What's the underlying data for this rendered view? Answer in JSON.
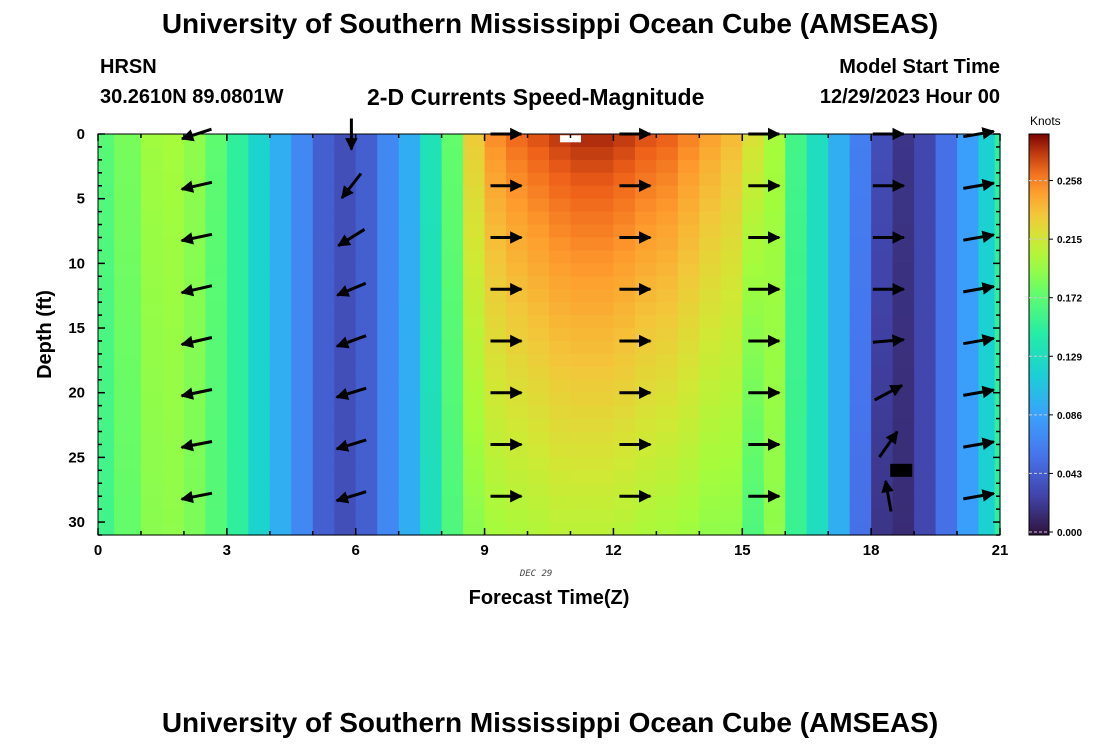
{
  "header": {
    "title": "University of Southern Mississippi Ocean Cube (AMSEAS)",
    "station": "HRSN",
    "coords": "30.2610N  89.0801W",
    "plot_title": "2-D Currents Speed-Magnitude",
    "start_label": "Model Start Time",
    "start_value": "12/29/2023 Hour 00"
  },
  "footer": {
    "title": "University of Southern Mississippi Ocean Cube (AMSEAS)"
  },
  "chart_data": {
    "type": "heatmap",
    "xlabel": "Forecast Time(Z)",
    "ylabel": "Depth (ft)",
    "date_label": "DEC 29",
    "xlim": [
      0,
      21
    ],
    "ylim": [
      31,
      0
    ],
    "xticks": [
      0,
      3,
      6,
      9,
      12,
      15,
      18,
      21
    ],
    "yticks": [
      0,
      5,
      10,
      15,
      20,
      25,
      30
    ],
    "colorbar": {
      "label": "Knots",
      "range": [
        0,
        0.29
      ],
      "ticks": [
        "0.000",
        "0.043",
        "0.086",
        "0.129",
        "0.172",
        "0.215",
        "0.258"
      ]
    },
    "columns": {
      "x": [
        0,
        0.75,
        1.25,
        1.75,
        2.25,
        2.75,
        3.25,
        3.75,
        4.25,
        4.75,
        5.25,
        5.75,
        6.25,
        6.75,
        7.25,
        7.75,
        8.25,
        8.75,
        9.25,
        9.75,
        10.25,
        10.75,
        11.25,
        11.75,
        12.25,
        12.75,
        13.25,
        13.75,
        14.25,
        14.75,
        15.25,
        15.75,
        16.25,
        16.75,
        17.25,
        17.75,
        18.25,
        18.75,
        19.25,
        19.75,
        20.25,
        20.75,
        21
      ],
      "speed_surface": [
        0.17,
        0.182,
        0.196,
        0.198,
        0.19,
        0.172,
        0.15,
        0.12,
        0.095,
        0.07,
        0.045,
        0.035,
        0.045,
        0.07,
        0.095,
        0.135,
        0.175,
        0.23,
        0.255,
        0.265,
        0.272,
        0.278,
        0.282,
        0.282,
        0.278,
        0.272,
        0.268,
        0.258,
        0.248,
        0.238,
        0.22,
        0.198,
        0.16,
        0.13,
        0.095,
        0.065,
        0.035,
        0.02,
        0.03,
        0.055,
        0.085,
        0.118,
        0.15
      ],
      "speed_bottom": [
        0.158,
        0.175,
        0.188,
        0.19,
        0.183,
        0.168,
        0.15,
        0.12,
        0.095,
        0.07,
        0.045,
        0.035,
        0.045,
        0.07,
        0.095,
        0.13,
        0.165,
        0.188,
        0.197,
        0.2,
        0.202,
        0.205,
        0.205,
        0.205,
        0.203,
        0.2,
        0.198,
        0.195,
        0.19,
        0.19,
        0.165,
        0.19,
        0.155,
        0.13,
        0.095,
        0.055,
        0.02,
        0.015,
        0.03,
        0.055,
        0.085,
        0.118,
        0.15
      ]
    },
    "vector_rows_ft": [
      0,
      4,
      8,
      12,
      16,
      20,
      24,
      28
    ],
    "vector_columns": [
      {
        "x": 2.3,
        "directions_deg": [
          198,
          193,
          192,
          193,
          193,
          192,
          191,
          191
        ]
      },
      {
        "x": 5.9,
        "directions_deg": [
          270,
          232,
          212,
          203,
          200,
          197,
          197,
          197
        ]
      },
      {
        "x": 9.5,
        "directions_deg": [
          0,
          0,
          0,
          0,
          0,
          0,
          0,
          0
        ]
      },
      {
        "x": 12.5,
        "directions_deg": [
          0,
          0,
          0,
          0,
          0,
          0,
          0,
          0
        ]
      },
      {
        "x": 15.5,
        "directions_deg": [
          0,
          0,
          0,
          0,
          0,
          0,
          0,
          0
        ]
      },
      {
        "x": 18.4,
        "directions_deg": [
          0,
          0,
          0,
          0,
          5,
          28,
          55,
          100
        ]
      },
      {
        "x": 20.5,
        "directions_deg": [
          10,
          10,
          10,
          10,
          10,
          10,
          10,
          10
        ]
      }
    ],
    "markers": [
      {
        "x": 11.0,
        "depth": 0.1,
        "color": "#ffffff"
      },
      {
        "x": 18.7,
        "depth": 26.0,
        "color": "#000000"
      }
    ]
  }
}
